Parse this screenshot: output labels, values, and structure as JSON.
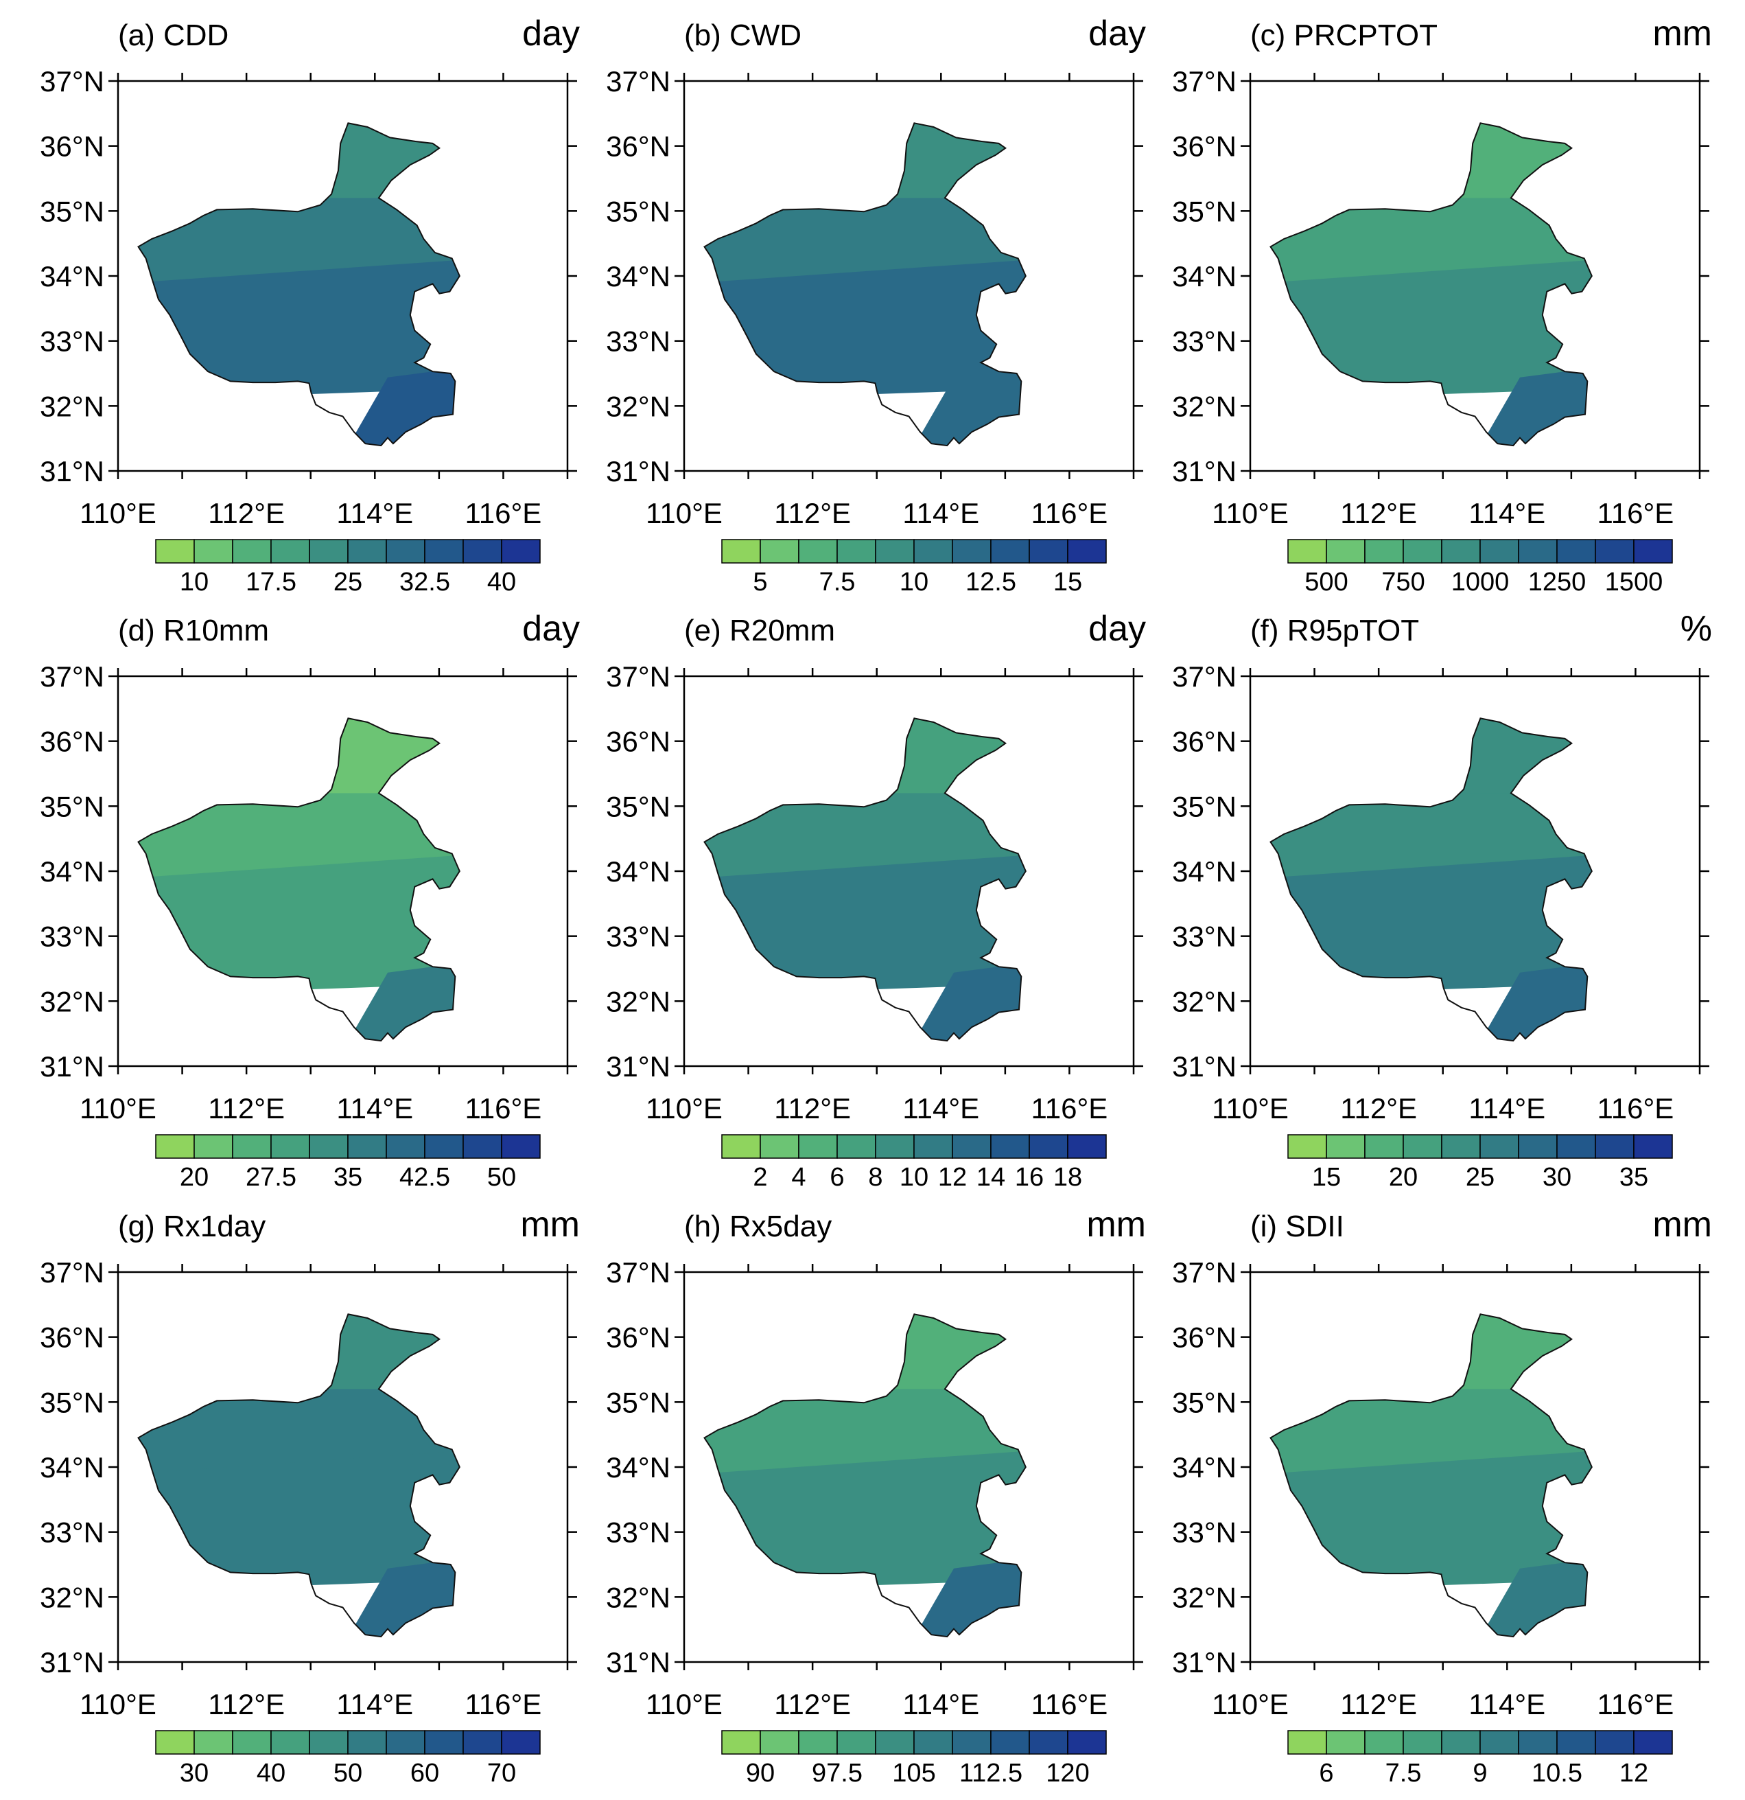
{
  "figure": {
    "lat_ticks": [
      "37°N",
      "36°N",
      "35°N",
      "34°N",
      "33°N",
      "32°N",
      "31°N"
    ],
    "lon_ticks": [
      "110°E",
      "112°E",
      "114°E",
      "116°E"
    ],
    "palette": [
      "#8fd45e",
      "#6cc474",
      "#52b07a",
      "#45a17e",
      "#3b8f82",
      "#327c85",
      "#2a6a88",
      "#22588b",
      "#1e478f",
      "#1c3594"
    ],
    "border_color": "#111111"
  },
  "panels": [
    {
      "id": "a",
      "title": "(a) CDD",
      "unit": "day",
      "cb_labels": [
        "10",
        "17.5",
        "25",
        "32.5",
        "40"
      ],
      "zone_levels": [
        4,
        5,
        6,
        7
      ]
    },
    {
      "id": "b",
      "title": "(b) CWD",
      "unit": "day",
      "cb_labels": [
        "5",
        "7.5",
        "10",
        "12.5",
        "15"
      ],
      "zone_levels": [
        4,
        5,
        6,
        6
      ]
    },
    {
      "id": "c",
      "title": "(c) PRCPTOT",
      "unit": "mm",
      "cb_labels": [
        "500",
        "750",
        "1000",
        "1250",
        "1500"
      ],
      "zone_levels": [
        2,
        3,
        4,
        6
      ]
    },
    {
      "id": "d",
      "title": "(d) R10mm",
      "unit": "day",
      "cb_labels": [
        "20",
        "27.5",
        "35",
        "42.5",
        "50"
      ],
      "zone_levels": [
        1,
        2,
        3,
        5
      ]
    },
    {
      "id": "e",
      "title": "(e) R20mm",
      "unit": "day",
      "cb_labels": [
        "2",
        "4",
        "6",
        "8",
        "10",
        "12",
        "14",
        "16",
        "18"
      ],
      "zone_levels": [
        3,
        4,
        5,
        6
      ]
    },
    {
      "id": "f",
      "title": "(f) R95pTOT",
      "unit": "%",
      "cb_labels": [
        "15",
        "20",
        "25",
        "30",
        "35"
      ],
      "zone_levels": [
        4,
        4,
        5,
        6
      ]
    },
    {
      "id": "g",
      "title": "(g) Rx1day",
      "unit": "mm",
      "cb_labels": [
        "30",
        "40",
        "50",
        "60",
        "70"
      ],
      "zone_levels": [
        4,
        5,
        5,
        6
      ]
    },
    {
      "id": "h",
      "title": "(h) Rx5day",
      "unit": "mm",
      "cb_labels": [
        "90",
        "97.5",
        "105",
        "112.5",
        "120"
      ],
      "zone_levels": [
        2,
        3,
        4,
        6
      ]
    },
    {
      "id": "i",
      "title": "(i) SDII",
      "unit": "mm",
      "cb_labels": [
        "6",
        "7.5",
        "9",
        "10.5",
        "12"
      ],
      "zone_levels": [
        2,
        3,
        4,
        5
      ]
    }
  ]
}
